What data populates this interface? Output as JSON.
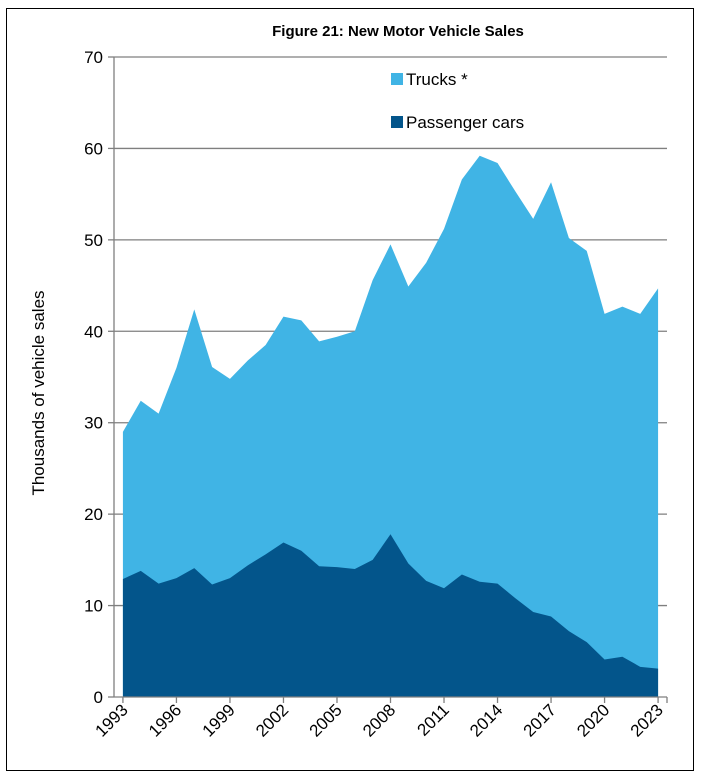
{
  "chart_data": {
    "type": "area",
    "title": "Figure 21: New Motor Vehicle Sales",
    "ylabel": "Thousands of vehicle sales",
    "xlabel": "",
    "ylim": [
      0,
      70
    ],
    "yticks": [
      0,
      10,
      20,
      30,
      40,
      50,
      60,
      70
    ],
    "xtick_labels": [
      "1993",
      "1996",
      "1999",
      "2002",
      "2005",
      "2008",
      "2011",
      "2014",
      "2017",
      "2020",
      "2023"
    ],
    "x": [
      1993,
      1994,
      1995,
      1996,
      1997,
      1998,
      1999,
      2000,
      2001,
      2002,
      2003,
      2004,
      2005,
      2006,
      2007,
      2008,
      2009,
      2010,
      2011,
      2012,
      2013,
      2014,
      2015,
      2016,
      2017,
      2018,
      2019,
      2020,
      2021,
      2022,
      2023
    ],
    "stacked": true,
    "grid": "horizontal",
    "legend_position": "top-center",
    "series": [
      {
        "name": "Passenger cars",
        "color": "#03558B",
        "values": [
          12.9,
          13.8,
          12.4,
          13.0,
          14.1,
          12.3,
          13.0,
          14.4,
          15.6,
          16.9,
          16.0,
          14.3,
          14.2,
          14.0,
          15.0,
          17.8,
          14.6,
          12.7,
          11.9,
          13.4,
          12.6,
          12.4,
          10.8,
          9.3,
          8.8,
          7.2,
          6.0,
          4.1,
          4.4,
          3.3,
          3.1
        ]
      },
      {
        "name": "Trucks *",
        "color": "#40B4E5",
        "values": [
          16.1,
          18.6,
          18.6,
          23.0,
          28.3,
          23.8,
          21.8,
          22.4,
          22.9,
          24.7,
          25.2,
          24.6,
          25.2,
          26.0,
          30.6,
          31.7,
          30.3,
          34.8,
          39.3,
          43.2,
          46.6,
          46.0,
          44.5,
          43.0,
          47.5,
          43.0,
          42.8,
          37.8,
          38.3,
          38.6,
          41.6
        ]
      }
    ]
  }
}
